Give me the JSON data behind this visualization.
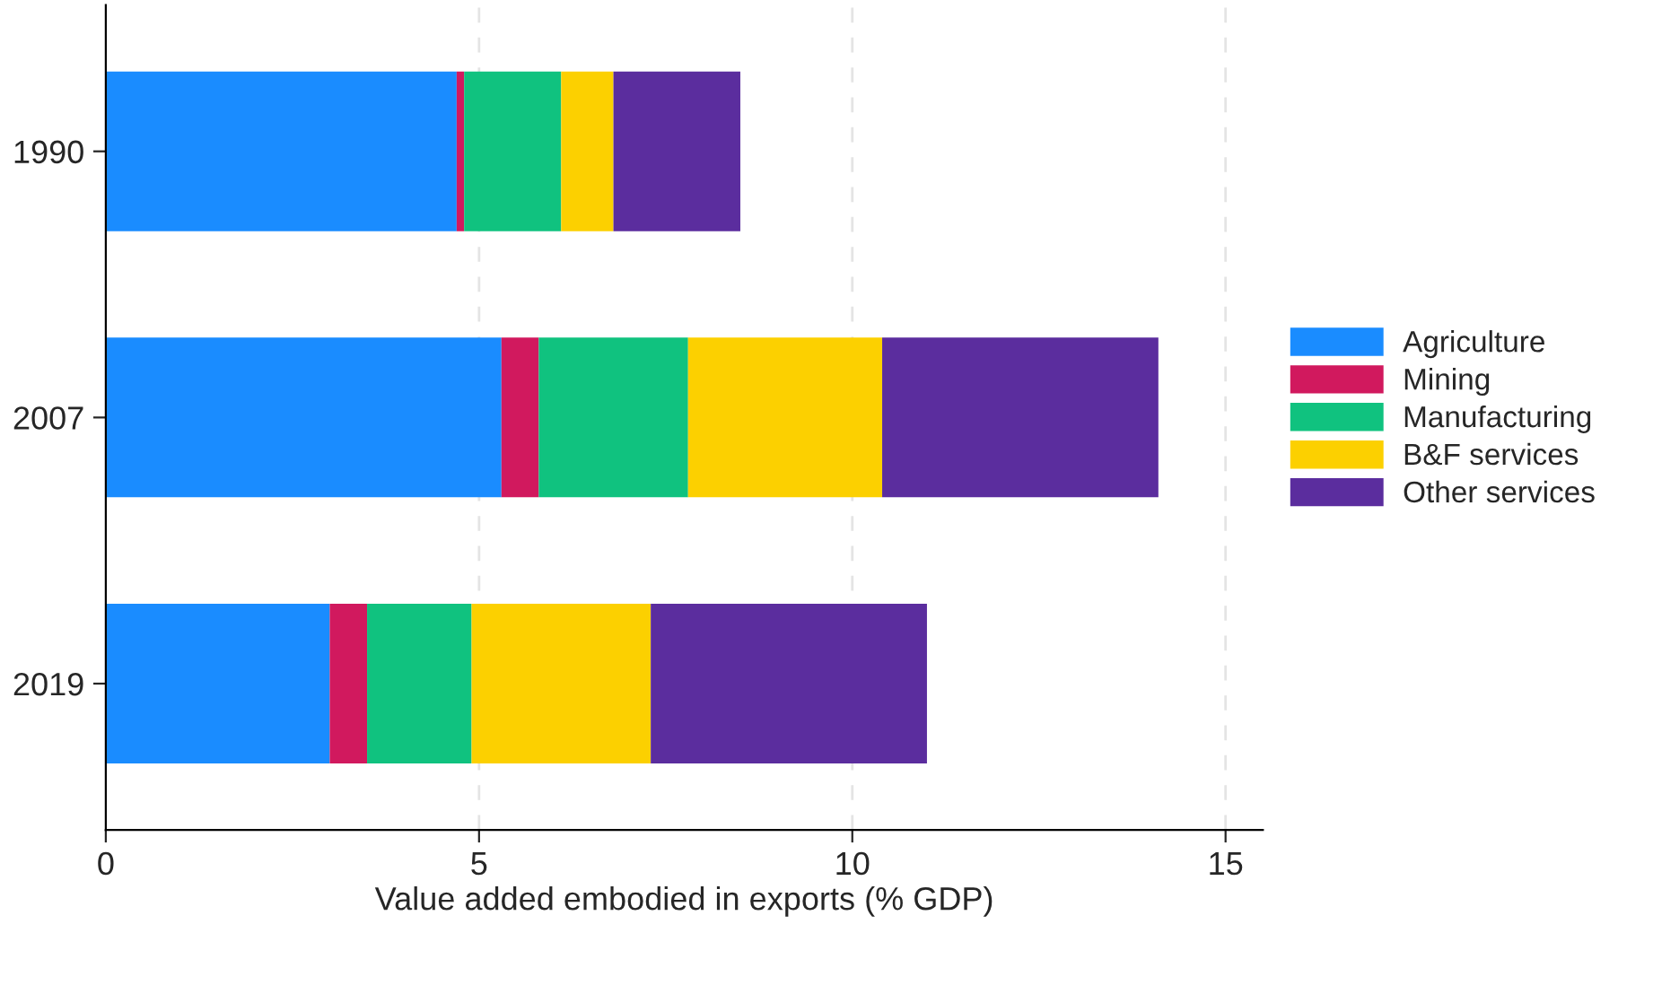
{
  "chart_data": {
    "type": "bar",
    "orientation": "horizontal",
    "stacked": true,
    "categories": [
      "1990",
      "2007",
      "2019"
    ],
    "series": [
      {
        "name": "Agriculture",
        "color": "#1a8cff",
        "values": [
          4.7,
          5.3,
          3.0
        ]
      },
      {
        "name": "Mining",
        "color": "#d1195e",
        "values": [
          0.1,
          0.5,
          0.5
        ]
      },
      {
        "name": "Manufacturing",
        "color": "#10c27f",
        "values": [
          1.3,
          2.0,
          1.4
        ]
      },
      {
        "name": "B&F services",
        "color": "#fcd000",
        "values": [
          0.7,
          2.6,
          2.4
        ]
      },
      {
        "name": "Other services",
        "color": "#5b2d9e",
        "values": [
          1.7,
          3.7,
          3.7
        ]
      }
    ],
    "xlim": [
      0,
      15.5
    ],
    "xticks": [
      0,
      5,
      10,
      15
    ],
    "xlabel": "Value added embodied in exports (% GDP)",
    "grid": "x",
    "legend": "right"
  }
}
